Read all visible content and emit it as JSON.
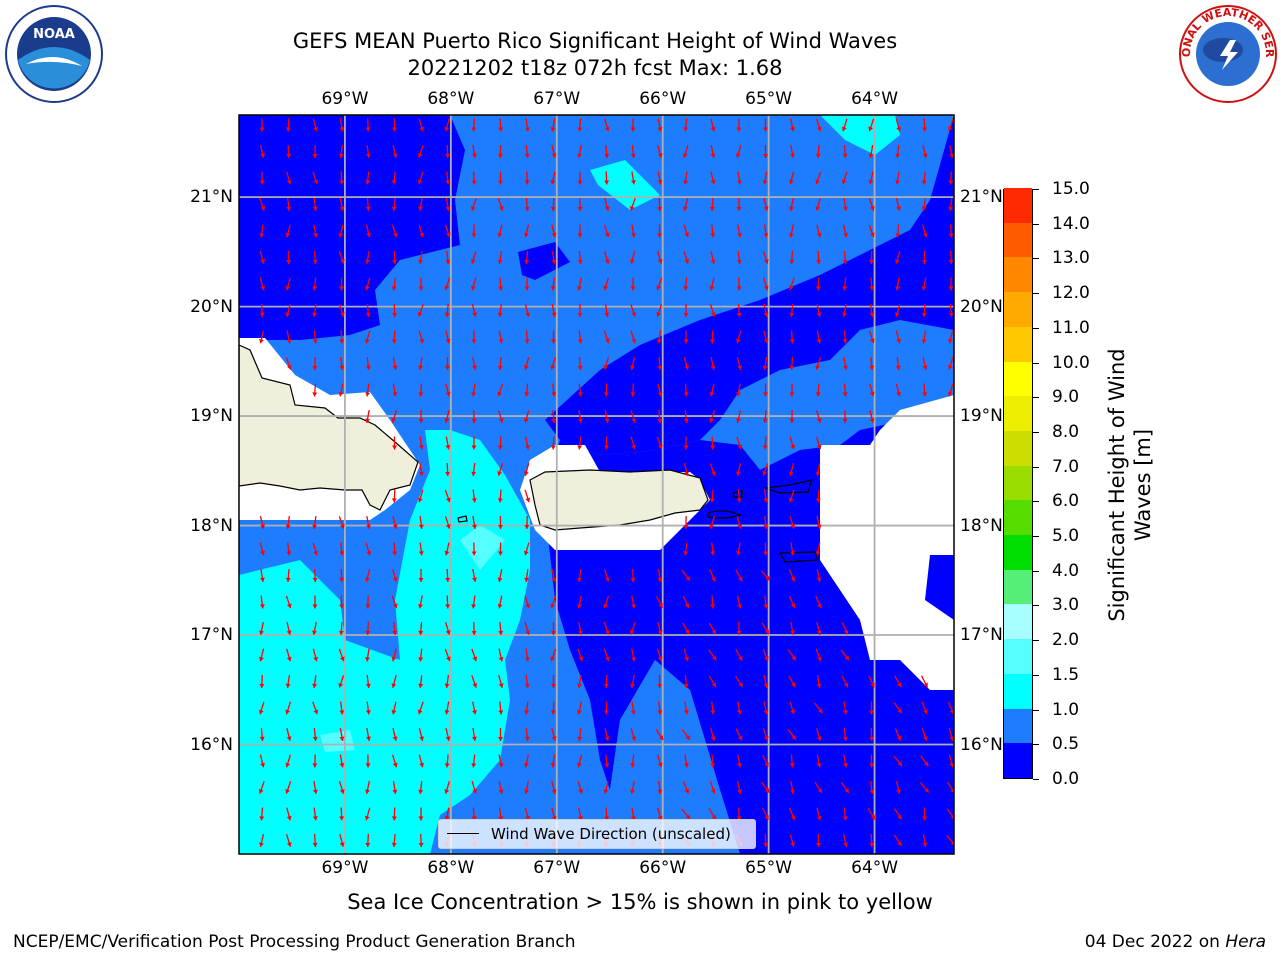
{
  "title_line1": "GEFS MEAN Puerto Rico Significant Height of Wind Waves",
  "title_line2": "20221202 t18z 072h fcst   Max: 1.68",
  "legend_label": "Wind Wave Direction (unscaled)",
  "colorbar": {
    "label": "Significant Height of Wind Waves [m]",
    "levels": [
      "0.0",
      "0.5",
      "1.0",
      "1.5",
      "2.0",
      "3.0",
      "4.0",
      "5.0",
      "6.0",
      "7.0",
      "8.0",
      "9.0",
      "10.0",
      "11.0",
      "12.0",
      "13.0",
      "14.0",
      "15.0"
    ],
    "colors": [
      "#0000ff",
      "#1e7cff",
      "#00ffff",
      "#55ffff",
      "#a8ffff",
      "#55ee77",
      "#00dd00",
      "#55dd00",
      "#99dd00",
      "#ccdd00",
      "#eeee00",
      "#ffff00",
      "#ffc800",
      "#ffaa00",
      "#ff8800",
      "#ff5a00",
      "#ff2a00"
    ]
  },
  "map": {
    "lon_labels": [
      "69°W",
      "68°W",
      "67°W",
      "66°W",
      "65°W",
      "64°W"
    ],
    "lat_labels": [
      "21°N",
      "20°N",
      "19°N",
      "18°N",
      "17°N",
      "16°N"
    ],
    "lon_values": [
      -69,
      -68,
      -67,
      -66,
      -65,
      -64
    ],
    "lat_values": [
      21,
      20,
      19,
      18,
      17,
      16
    ],
    "extent": {
      "lon_min": -70.0,
      "lon_max": -63.25,
      "lat_min": 15.0,
      "lat_max": 21.75
    },
    "field_colors": {
      "lt05": "#0000ff",
      "lt10": "#1e7cff",
      "lt15": "#00ffff",
      "lt20": "#55ffff",
      "land": "#efefdc",
      "mask": "#ffffff",
      "arrow": "#ff0000",
      "grid": "#b0b0b0"
    }
  },
  "sea_ice_note": "Sea Ice Concentration > 15% is shown in pink to yellow",
  "footer_left": "NCEP/EMC/Verification Post Processing Product Generation Branch",
  "footer_date": "04 Dec 2022 on ",
  "footer_host": "Hera",
  "logos": {
    "left": "NOAA",
    "right": "NATIONAL WEATHER SERVICE"
  }
}
